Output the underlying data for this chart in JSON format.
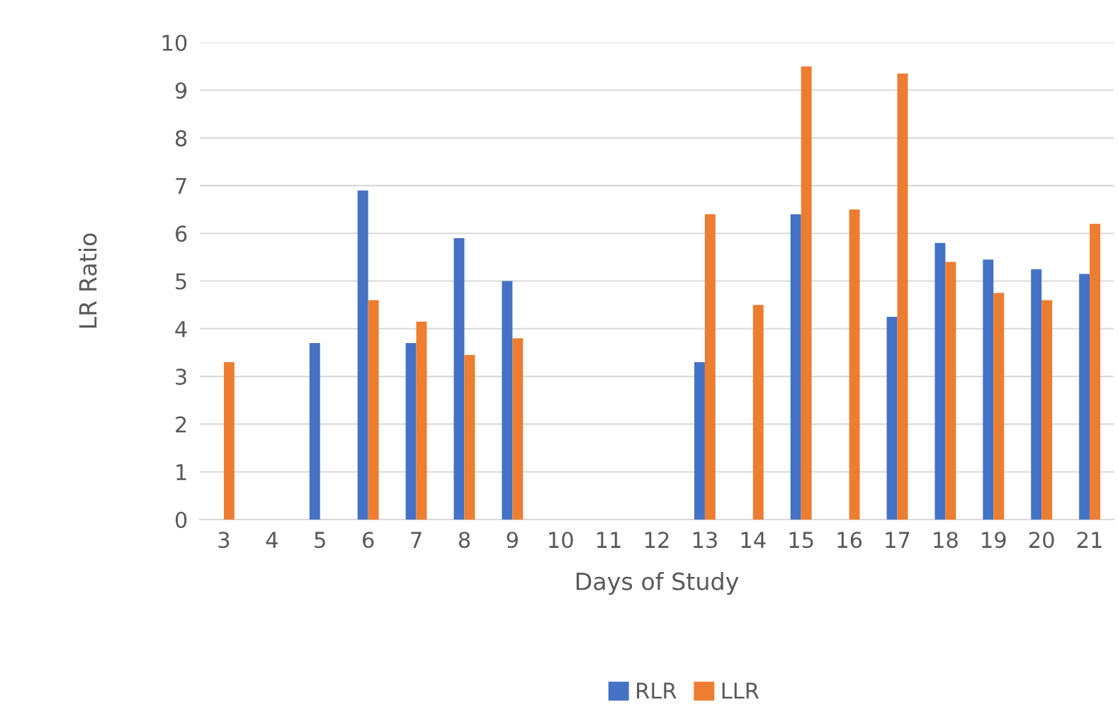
{
  "chart_data": {
    "type": "bar",
    "xlabel": "Days of Study",
    "ylabel": "LR Ratio",
    "categories": [
      "3",
      "4",
      "5",
      "6",
      "7",
      "8",
      "9",
      "10",
      "11",
      "12",
      "13",
      "14",
      "15",
      "16",
      "17",
      "18",
      "19",
      "20",
      "21"
    ],
    "series": [
      {
        "name": "RLR",
        "color": "#4472c4",
        "values": [
          null,
          null,
          3.7,
          6.9,
          3.7,
          5.9,
          5.0,
          null,
          null,
          null,
          3.3,
          null,
          6.4,
          null,
          4.25,
          5.8,
          5.45,
          5.25,
          5.15
        ]
      },
      {
        "name": "LLR",
        "color": "#ed7d31",
        "values": [
          3.3,
          null,
          null,
          4.6,
          4.15,
          3.45,
          3.8,
          null,
          null,
          null,
          6.4,
          4.5,
          9.5,
          6.5,
          9.35,
          5.4,
          4.75,
          4.6,
          6.2
        ]
      }
    ],
    "ylim": [
      0,
      10
    ],
    "yticks": [
      0,
      1,
      2,
      3,
      4,
      5,
      6,
      7,
      8,
      9,
      10
    ],
    "grid": "y",
    "legend": "bottom"
  }
}
